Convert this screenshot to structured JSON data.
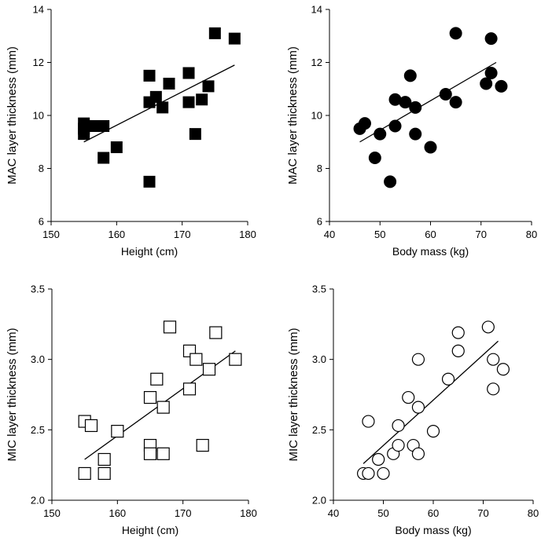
{
  "chart_data": [
    {
      "type": "scatter",
      "id": "mac-height",
      "xlabel": "Height (cm)",
      "ylabel": "MAC layer thickness (mm)",
      "xlim": [
        150,
        180
      ],
      "ylim": [
        6,
        14
      ],
      "xticks": [
        150,
        160,
        170,
        180
      ],
      "yticks": [
        6,
        8,
        10,
        12,
        14
      ],
      "ytick_labels": [
        "6",
        "8",
        "10",
        "12",
        "14"
      ],
      "marker": "filled-square",
      "points": [
        [
          155,
          9.7
        ],
        [
          155,
          9.5
        ],
        [
          155,
          9.3
        ],
        [
          156,
          9.6
        ],
        [
          157,
          9.6
        ],
        [
          158,
          9.6
        ],
        [
          158,
          8.4
        ],
        [
          160,
          8.8
        ],
        [
          165,
          11.5
        ],
        [
          165,
          10.5
        ],
        [
          165,
          7.5
        ],
        [
          166,
          10.7
        ],
        [
          167,
          10.3
        ],
        [
          168,
          11.2
        ],
        [
          171,
          11.6
        ],
        [
          171,
          10.5
        ],
        [
          172,
          9.3
        ],
        [
          173,
          10.6
        ],
        [
          174,
          11.1
        ],
        [
          175,
          13.1
        ],
        [
          178,
          12.9
        ]
      ],
      "trend": [
        [
          155,
          9.0
        ],
        [
          178,
          11.9
        ]
      ]
    },
    {
      "type": "scatter",
      "id": "mac-mass",
      "xlabel": "Body mass (kg)",
      "ylabel": "MAC layer thickness (mm)",
      "xlim": [
        40,
        80
      ],
      "ylim": [
        6,
        14
      ],
      "xticks": [
        40,
        50,
        60,
        70,
        80
      ],
      "yticks": [
        6,
        8,
        10,
        12,
        14
      ],
      "ytick_labels": [
        "6",
        "8",
        "10",
        "12",
        "14"
      ],
      "marker": "filled-circle",
      "points": [
        [
          46,
          9.5
        ],
        [
          47,
          9.7
        ],
        [
          49,
          8.4
        ],
        [
          50,
          9.3
        ],
        [
          52,
          7.5
        ],
        [
          53,
          10.6
        ],
        [
          53,
          9.6
        ],
        [
          55,
          10.5
        ],
        [
          56,
          11.5
        ],
        [
          57,
          10.3
        ],
        [
          57,
          9.3
        ],
        [
          60,
          8.8
        ],
        [
          63,
          10.8
        ],
        [
          65,
          13.1
        ],
        [
          65,
          10.5
        ],
        [
          71,
          11.2
        ],
        [
          72,
          12.9
        ],
        [
          72,
          11.6
        ],
        [
          74,
          11.1
        ]
      ],
      "trend": [
        [
          46,
          9.0
        ],
        [
          73,
          12.0
        ]
      ]
    },
    {
      "type": "scatter",
      "id": "mic-height",
      "xlabel": "Height (cm)",
      "ylabel": "MIC layer thickness (mm)",
      "xlim": [
        150,
        180
      ],
      "ylim": [
        2.0,
        3.5
      ],
      "xticks": [
        150,
        160,
        170,
        180
      ],
      "yticks": [
        2.0,
        2.5,
        3.0,
        3.5
      ],
      "ytick_labels": [
        "2.0",
        "2.5",
        "3.0",
        "3.5"
      ],
      "marker": "open-square",
      "points": [
        [
          155,
          2.56
        ],
        [
          155,
          2.19
        ],
        [
          156,
          2.53
        ],
        [
          158,
          2.29
        ],
        [
          158,
          2.19
        ],
        [
          160,
          2.49
        ],
        [
          165,
          2.73
        ],
        [
          165,
          2.39
        ],
        [
          165,
          2.33
        ],
        [
          166,
          2.86
        ],
        [
          167,
          2.66
        ],
        [
          167,
          2.33
        ],
        [
          168,
          3.23
        ],
        [
          171,
          3.06
        ],
        [
          171,
          2.79
        ],
        [
          172,
          3.0
        ],
        [
          173,
          2.39
        ],
        [
          174,
          2.93
        ],
        [
          175,
          3.19
        ],
        [
          178,
          3.0
        ]
      ],
      "trend": [
        [
          155,
          2.29
        ],
        [
          178,
          3.06
        ]
      ]
    },
    {
      "type": "scatter",
      "id": "mic-mass",
      "xlabel": "Body mass (kg)",
      "ylabel": "MIC layer thickness (mm)",
      "xlim": [
        40,
        80
      ],
      "ylim": [
        2.0,
        3.5
      ],
      "xticks": [
        40,
        50,
        60,
        70,
        80
      ],
      "yticks": [
        2.0,
        2.5,
        3.0,
        3.5
      ],
      "ytick_labels": [
        "2.0",
        "2.5",
        "3.0",
        "3.5"
      ],
      "marker": "open-circle",
      "points": [
        [
          46,
          2.19
        ],
        [
          47,
          2.56
        ],
        [
          47,
          2.19
        ],
        [
          49,
          2.29
        ],
        [
          50,
          2.19
        ],
        [
          52,
          2.33
        ],
        [
          53,
          2.53
        ],
        [
          53,
          2.39
        ],
        [
          55,
          2.73
        ],
        [
          56,
          2.39
        ],
        [
          57,
          3.0
        ],
        [
          57,
          2.66
        ],
        [
          57,
          2.33
        ],
        [
          60,
          2.49
        ],
        [
          63,
          2.86
        ],
        [
          65,
          3.19
        ],
        [
          65,
          3.06
        ],
        [
          71,
          3.23
        ],
        [
          72,
          3.0
        ],
        [
          72,
          2.79
        ],
        [
          74,
          2.93
        ]
      ],
      "trend": [
        [
          46,
          2.26
        ],
        [
          73,
          3.13
        ]
      ]
    }
  ]
}
